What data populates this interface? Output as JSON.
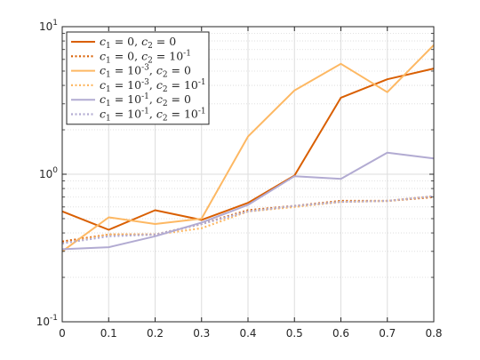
{
  "chart_data": {
    "type": "line",
    "x": [
      0,
      0.1,
      0.2,
      0.3,
      0.4,
      0.5,
      0.6,
      0.7,
      0.8
    ],
    "xlim": [
      0,
      0.8
    ],
    "ylim": [
      0.1,
      10
    ],
    "yscale": "log",
    "grid": true,
    "legend_position": "top-left",
    "xticks": [
      "0",
      "0.1",
      "0.2",
      "0.3",
      "0.4",
      "0.5",
      "0.6",
      "0.7",
      "0.8"
    ],
    "yticks": [
      {
        "value": 0.1,
        "base": "10",
        "exp": "-1"
      },
      {
        "value": 1,
        "base": "10",
        "exp": "0"
      },
      {
        "value": 10,
        "base": "10",
        "exp": "1"
      }
    ],
    "series": [
      {
        "name": "c1 = 0, c2 = 0",
        "label": [
          [
            "c",
            "1",
            " = 0, "
          ],
          [
            "c",
            "2",
            " = 0"
          ]
        ],
        "color": "#d95f02",
        "dashed": false,
        "values": [
          0.56,
          0.42,
          0.57,
          0.49,
          0.64,
          0.98,
          3.3,
          4.4,
          5.2
        ]
      },
      {
        "name": "c1 = 0, c2 = 10^-1",
        "label": [
          [
            "c",
            "1",
            " = 0, "
          ],
          [
            "c",
            "2",
            " = 10",
            "-1"
          ]
        ],
        "color": "#d95f02",
        "dashed": true,
        "values": [
          0.35,
          0.39,
          0.39,
          0.46,
          0.57,
          0.61,
          0.66,
          0.66,
          0.7
        ]
      },
      {
        "name": "c1 = 10^-3, c2 = 0",
        "label": [
          [
            "c",
            "1",
            " = 10",
            "-3",
            ", "
          ],
          [
            "c",
            "2",
            " = 0"
          ]
        ],
        "color": "#fdb863",
        "dashed": false,
        "values": [
          0.3,
          0.51,
          0.46,
          0.5,
          1.8,
          3.7,
          5.6,
          3.6,
          7.5
        ]
      },
      {
        "name": "c1 = 10^-3, c2 = 10^-1",
        "label": [
          [
            "c",
            "1",
            " = 10",
            "-3",
            ", "
          ],
          [
            "c",
            "2",
            " = 10",
            "-1"
          ]
        ],
        "color": "#fdb863",
        "dashed": true,
        "values": [
          0.34,
          0.39,
          0.39,
          0.43,
          0.56,
          0.6,
          0.65,
          0.66,
          0.71
        ]
      },
      {
        "name": "c1 = 10^-1, c2 = 0",
        "label": [
          [
            "c",
            "1",
            " = 10",
            "-1",
            ", "
          ],
          [
            "c",
            "2",
            " = 0"
          ]
        ],
        "color": "#b2abd2",
        "dashed": false,
        "values": [
          0.31,
          0.32,
          0.38,
          0.47,
          0.62,
          0.97,
          0.93,
          1.4,
          1.28
        ]
      },
      {
        "name": "c1 = 10^-1, c2 = 10^-1",
        "label": [
          [
            "c",
            "1",
            " = 10",
            "-1",
            ", "
          ],
          [
            "c",
            "2",
            " = 10",
            "-1"
          ]
        ],
        "color": "#b2abd2",
        "dashed": true,
        "values": [
          0.34,
          0.38,
          0.39,
          0.46,
          0.56,
          0.61,
          0.65,
          0.66,
          0.71
        ]
      }
    ]
  }
}
